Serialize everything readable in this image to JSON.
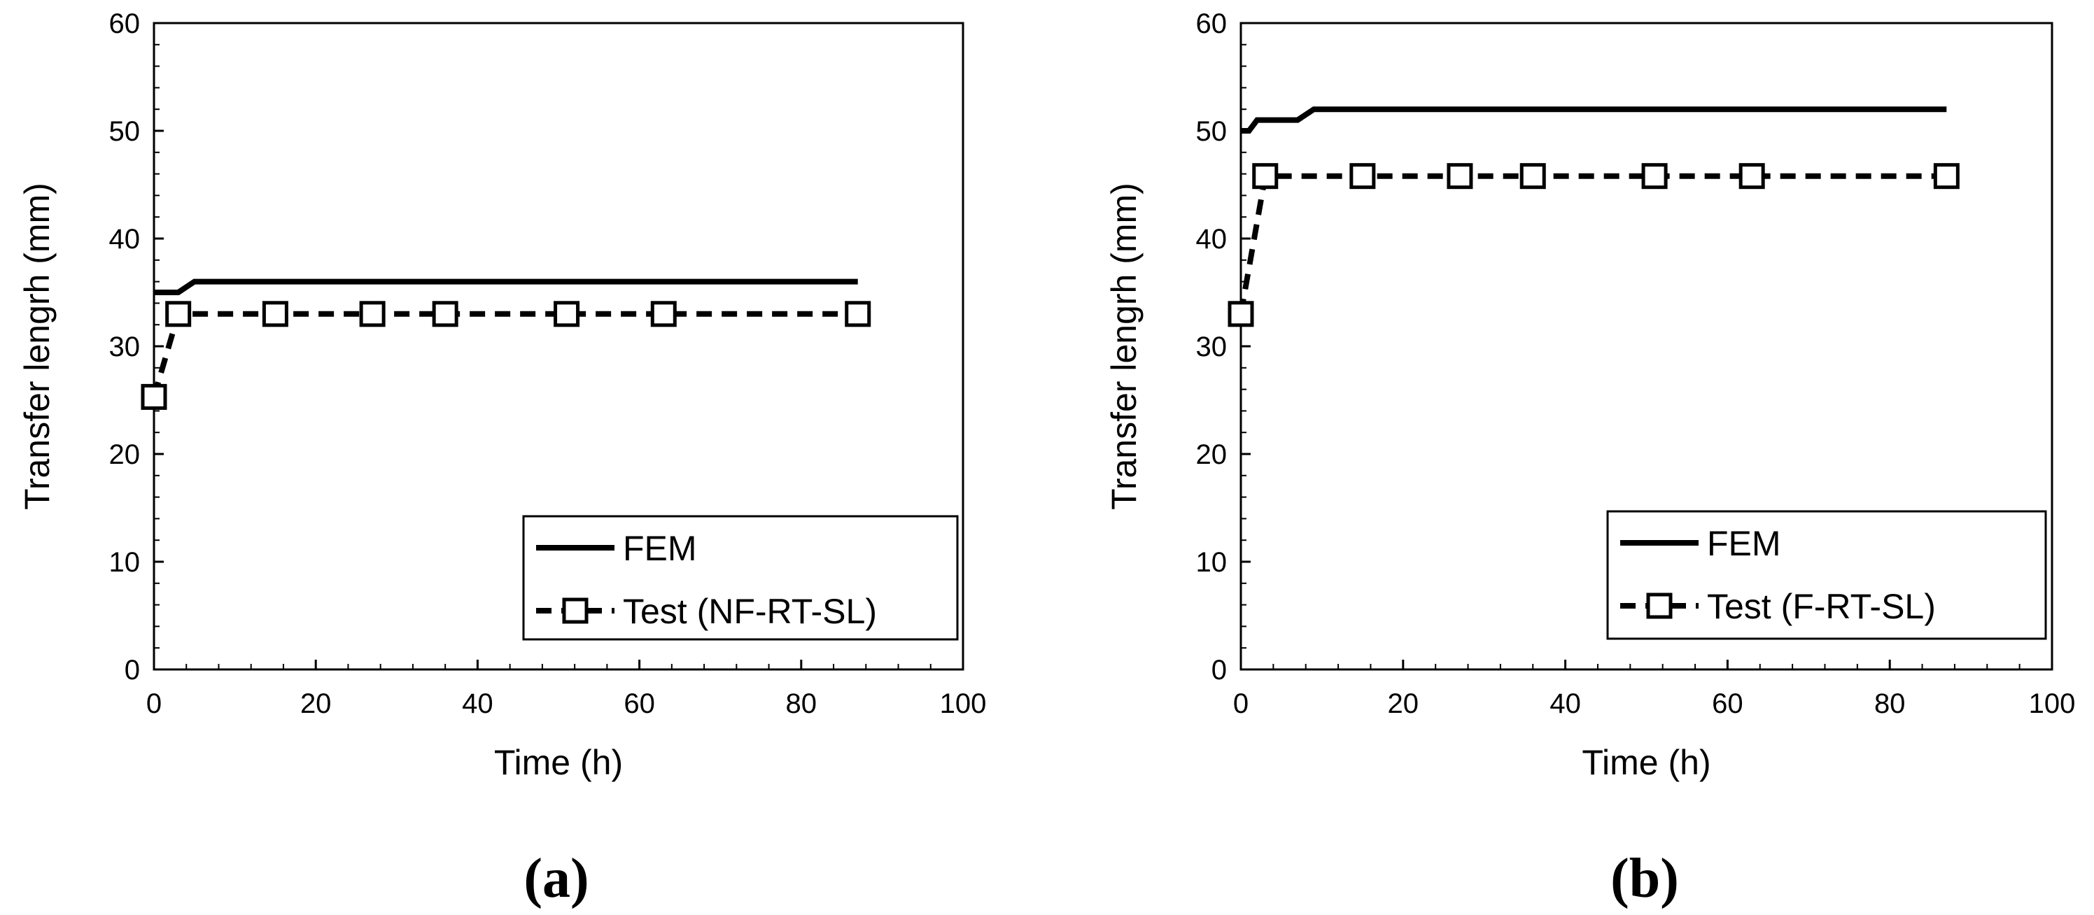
{
  "chart_data": [
    {
      "type": "line",
      "panel_label": "(a)",
      "xlabel": "Time (h)",
      "ylabel": "Transfer lengrh (mm)",
      "xlim": [
        0,
        100
      ],
      "ylim": [
        0,
        60
      ],
      "xticks": [
        "0",
        "20",
        "40",
        "60",
        "80",
        "100"
      ],
      "yticks": [
        "0",
        "10",
        "20",
        "30",
        "40",
        "50",
        "60"
      ],
      "grid": false,
      "legend_position": "bottom-right",
      "series": [
        {
          "name": "FEM",
          "style": "solid",
          "marker": "none",
          "color": "#000000",
          "x": [
            0,
            3,
            5,
            87
          ],
          "y": [
            35,
            35,
            36,
            36
          ]
        },
        {
          "name": "Test (NF-RT-SL)",
          "style": "dashed",
          "marker": "square",
          "color": "#000000",
          "x": [
            0,
            3,
            15,
            27,
            36,
            51,
            63,
            87
          ],
          "y": [
            25.3,
            33,
            33,
            33,
            33,
            33,
            33,
            33
          ]
        }
      ]
    },
    {
      "type": "line",
      "panel_label": "(b)",
      "xlabel": "Time (h)",
      "ylabel": "Transfer lengrh (mm)",
      "xlim": [
        0,
        100
      ],
      "ylim": [
        0,
        60
      ],
      "xticks": [
        "0",
        "20",
        "40",
        "60",
        "80",
        "100"
      ],
      "yticks": [
        "0",
        "10",
        "20",
        "30",
        "40",
        "50",
        "60"
      ],
      "grid": false,
      "legend_position": "bottom-right",
      "series": [
        {
          "name": "FEM",
          "style": "solid",
          "marker": "none",
          "color": "#000000",
          "x": [
            0,
            1,
            2,
            7,
            9,
            87
          ],
          "y": [
            50,
            50,
            51,
            51,
            52,
            52
          ]
        },
        {
          "name": "Test (F-RT-SL)",
          "style": "dashed",
          "marker": "square",
          "color": "#000000",
          "x": [
            0,
            3,
            15,
            27,
            36,
            51,
            63,
            87
          ],
          "y": [
            33,
            45.8,
            45.8,
            45.8,
            45.8,
            45.8,
            45.8,
            45.8
          ]
        }
      ]
    }
  ]
}
